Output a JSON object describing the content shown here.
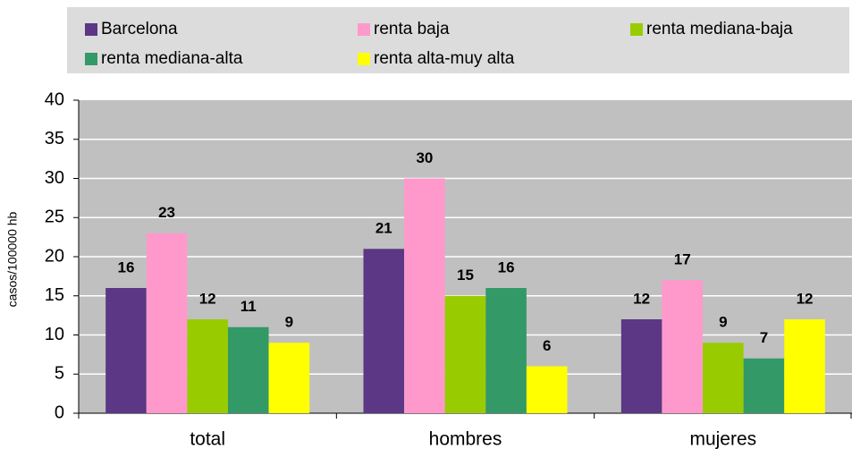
{
  "chart_data": {
    "type": "bar",
    "y_label": "casos/100000 hb",
    "categories": [
      "total",
      "hombres",
      "mujeres"
    ],
    "series": [
      {
        "name": "Barcelona",
        "color": "#5b3785",
        "values": [
          16,
          21,
          12
        ]
      },
      {
        "name": "renta baja",
        "color": "#ff99cc",
        "values": [
          23,
          30,
          17
        ]
      },
      {
        "name": "renta mediana-baja",
        "color": "#99cc00",
        "values": [
          12,
          15,
          9
        ]
      },
      {
        "name": "renta mediana-alta",
        "color": "#339966",
        "values": [
          11,
          16,
          7
        ]
      },
      {
        "name": "renta alta-muy alta",
        "color": "#ffff00",
        "values": [
          9,
          6,
          12
        ]
      }
    ],
    "ylim": [
      0,
      40
    ],
    "yticks": [
      0,
      5,
      10,
      15,
      20,
      25,
      30,
      35,
      40
    ],
    "grid": true,
    "legend": "top"
  }
}
